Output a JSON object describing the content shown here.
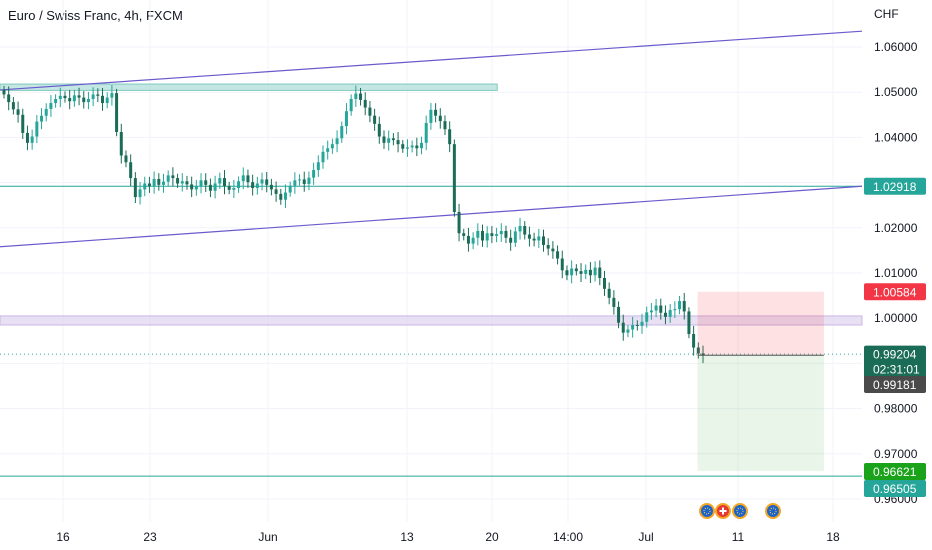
{
  "header": {
    "title": "Euro / Swiss Franc, 4h, FXCM",
    "currency": "CHF"
  },
  "chart_data": {
    "type": "candlestick",
    "symbol": "EUR/CHF",
    "timeframe": "4h",
    "y_ticks": [
      "1.06000",
      "1.05000",
      "1.04000",
      "1.03000",
      "1.02000",
      "1.01000",
      "1.00000",
      "0.99000",
      "0.98000",
      "0.97000",
      "0.96000"
    ],
    "x_ticks": [
      "16",
      "23",
      "Jun",
      "13",
      "20",
      "14:00",
      "Jul",
      "11",
      "18"
    ],
    "ylim": [
      0.9555,
      1.065
    ],
    "price_tags": [
      {
        "label": "1.02918",
        "value": 1.02918,
        "color": "#26a69a"
      },
      {
        "label": "1.00584",
        "value": 1.00584,
        "color": "#f23645"
      },
      {
        "label": "0.99204",
        "value": 0.99204,
        "color": "#1b6c56",
        "sub": "02:31:01"
      },
      {
        "label": "0.99181",
        "value": 0.99181,
        "color": "#4a4a4a"
      },
      {
        "label": "0.96621",
        "value": 0.96621,
        "color": "#1aa31a"
      },
      {
        "label": "0.96505",
        "value": 0.96505,
        "color": "#26a69a"
      }
    ],
    "horizontal_lines": [
      {
        "value": 1.02918,
        "color": "#26a69a"
      },
      {
        "value": 0.96505,
        "color": "#26a69a"
      }
    ],
    "trend_lines": [
      {
        "from": [
          0,
          1.0505
        ],
        "to": [
          43,
          1.0635
        ],
        "color": "#6a5acd"
      },
      {
        "from": [
          0,
          1.0158
        ],
        "to": [
          43,
          1.0292
        ],
        "color": "#6a5acd"
      }
    ],
    "zones": [
      {
        "x": [
          0,
          24.8
        ],
        "y": [
          1.0504,
          1.0518
        ],
        "color": "#b2dfdb"
      },
      {
        "x": [
          0,
          43
        ],
        "y": [
          0.9985,
          1.0005
        ],
        "color": "#e1d5f0"
      }
    ],
    "position": {
      "entry": 0.9918,
      "stop": 1.00584,
      "target": 0.96621,
      "x": [
        34.8,
        41.1
      ]
    },
    "close_series": [
      1.0495,
      1.0478,
      1.0462,
      1.045,
      1.041,
      1.0388,
      1.0402,
      1.0435,
      1.0448,
      1.0463,
      1.0476,
      1.0485,
      1.0492,
      1.0487,
      1.048,
      1.0493,
      1.0488,
      1.0478,
      1.0485,
      1.0495,
      1.0492,
      1.0476,
      1.0488,
      1.0498,
      1.0412,
      1.036,
      1.0345,
      1.031,
      1.0268,
      1.0285,
      1.0298,
      1.0292,
      1.0308,
      1.0295,
      1.0302,
      1.0316,
      1.031,
      1.0298,
      1.0303,
      1.0296,
      1.0285,
      1.0292,
      1.0305,
      1.0295,
      1.0282,
      1.0298,
      1.031,
      1.0292,
      1.0284,
      1.0288,
      1.0303,
      1.0316,
      1.0301,
      1.0288,
      1.0298,
      1.0307,
      1.0295,
      1.0285,
      1.0275,
      1.0262,
      1.0278,
      1.0293,
      1.0305,
      1.0307,
      1.0297,
      1.0311,
      1.0328,
      1.0345,
      1.0368,
      1.0376,
      1.0385,
      1.0398,
      1.0425,
      1.0458,
      1.0485,
      1.0497,
      1.0483,
      1.0466,
      1.0448,
      1.043,
      1.0402,
      1.0388,
      1.0398,
      1.0394,
      1.0385,
      1.0375,
      1.0378,
      1.0382,
      1.0376,
      1.0388,
      1.0432,
      1.0461,
      1.0448,
      1.0436,
      1.0418,
      1.0385,
      1.0235,
      1.0188,
      1.0182,
      1.0165,
      1.0178,
      1.0193,
      1.0172,
      1.0188,
      1.0182,
      1.0186,
      1.0193,
      1.0178,
      1.0167,
      1.0192,
      1.0204,
      1.0185,
      1.0176,
      1.0172,
      1.0181,
      1.0162,
      1.0154,
      1.0148,
      1.0132,
      1.0106,
      1.0095,
      1.011,
      1.0104,
      1.0098,
      1.0107,
      1.0095,
      1.0112,
      1.0089,
      1.0065,
      1.0045,
      1.0025,
      0.999,
      0.9968,
      0.9975,
      0.9985,
      0.9983,
      0.9992,
      1.0013,
      1.0017,
      1.0028,
      1.0012,
      1.0003,
      1.0018,
      1.002,
      1.0038,
      1.0015,
      0.9965,
      0.9935,
      0.9922,
      0.9918
    ]
  }
}
